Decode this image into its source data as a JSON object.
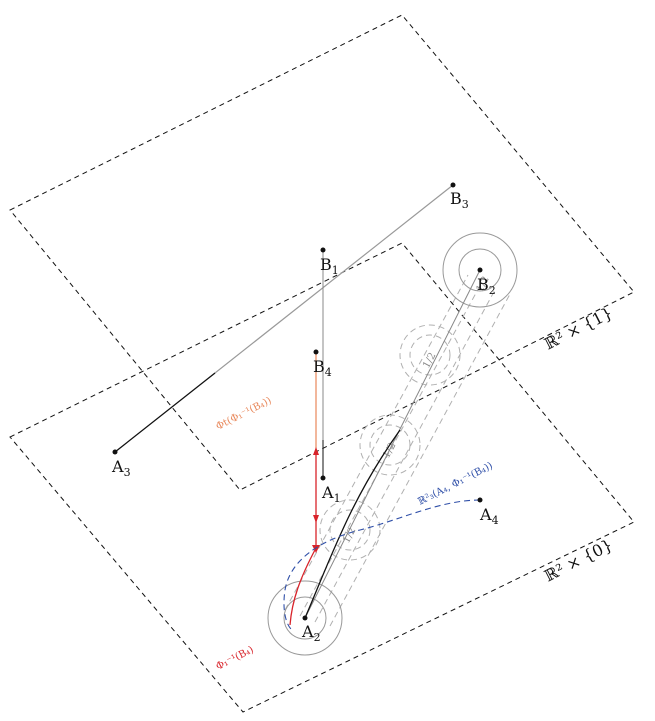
{
  "points": {
    "A1": {
      "base": "A",
      "sub": "1"
    },
    "A2": {
      "base": "A",
      "sub": "2"
    },
    "A3": {
      "base": "A",
      "sub": "3"
    },
    "A4": {
      "base": "A",
      "sub": "4"
    },
    "B1": {
      "base": "B",
      "sub": "1"
    },
    "B2": {
      "base": "B",
      "sub": "2"
    },
    "B3": {
      "base": "B",
      "sub": "3"
    },
    "B4": {
      "base": "B",
      "sub": "4"
    }
  },
  "planes": {
    "top": "ℝ² × {1}",
    "bottom": "ℝ² × {0}"
  },
  "annotations": {
    "phi_t": "Φt(Φ₁⁻¹(B₄))",
    "r3": "ℝ²₃(A₄, Φ₁⁻¹(B₄))",
    "phi_inv": "Φ₁⁻¹(B₄)"
  },
  "tube_labels": [
    "1/2",
    "1/2",
    "1/2",
    "1/2"
  ],
  "colors": {
    "orange": "#e8875a",
    "red": "#d8232a",
    "blue": "#2f4fa8",
    "gray": "#9a9a9a",
    "black": "#111111"
  }
}
